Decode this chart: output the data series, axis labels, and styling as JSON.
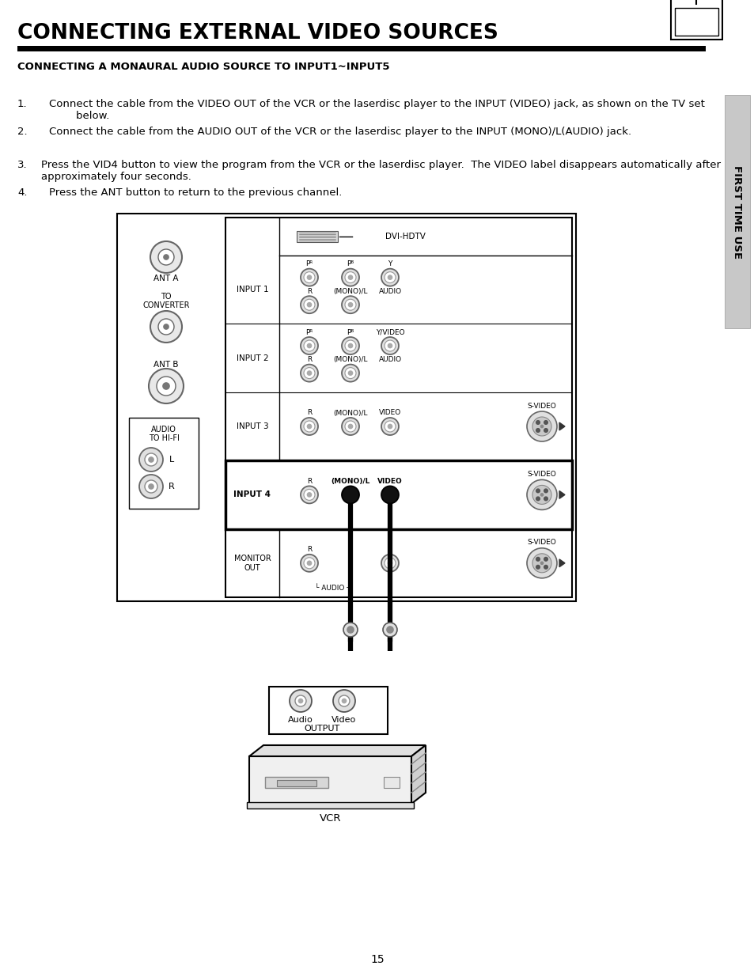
{
  "title": "CONNECTING EXTERNAL VIDEO SOURCES",
  "subtitle": "CONNECTING A MONAURAL AUDIO SOURCE TO INPUT1~INPUT5",
  "body_text": [
    {
      "num": "1.",
      "indent": 40,
      "text": "Connect the cable from the VIDEO OUT of the VCR or the laserdisc player to the INPUT (VIDEO) jack, as shown on the TV set\n        below."
    },
    {
      "num": "2.",
      "indent": 40,
      "text": "Connect the cable from the AUDIO OUT of the VCR or the laserdisc player to the INPUT (MONO)/L(AUDIO) jack."
    },
    {
      "num": "3.",
      "indent": 30,
      "text": "Press the VID4 button to view the program from the VCR or the laserdisc player.  The VIDEO label disappears automatically after\napproximately four seconds."
    },
    {
      "num": "4.",
      "indent": 40,
      "text": "Press the ANT button to return to the previous channel."
    }
  ],
  "sidebar_text": "FIRST TIME USE",
  "page_number": "15",
  "bg_color": "#ffffff"
}
